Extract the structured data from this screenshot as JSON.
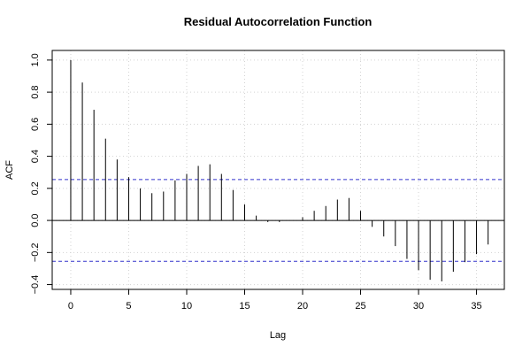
{
  "chart_data": {
    "type": "bar",
    "title": "Residual Autocorrelation Function",
    "xlabel": "Lag",
    "ylabel": "ACF",
    "x": [
      0,
      1,
      2,
      3,
      4,
      5,
      6,
      7,
      8,
      9,
      10,
      11,
      12,
      13,
      14,
      15,
      16,
      17,
      18,
      19,
      20,
      21,
      22,
      23,
      24,
      25,
      26,
      27,
      28,
      29,
      30,
      31,
      32,
      33,
      34,
      35,
      36
    ],
    "values": [
      1.0,
      0.86,
      0.69,
      0.51,
      0.38,
      0.27,
      0.2,
      0.17,
      0.18,
      0.25,
      0.29,
      0.34,
      0.35,
      0.29,
      0.19,
      0.1,
      0.03,
      -0.01,
      -0.01,
      0.0,
      0.02,
      0.06,
      0.09,
      0.13,
      0.14,
      0.06,
      -0.04,
      -0.1,
      -0.16,
      -0.24,
      -0.31,
      -0.37,
      -0.38,
      -0.32,
      -0.26,
      -0.21,
      -0.15
    ],
    "confidence_limit": 0.255,
    "xlim": [
      -1.6,
      37.4
    ],
    "ylim": [
      -0.43,
      1.06
    ],
    "x_ticks": [
      0,
      5,
      10,
      15,
      20,
      25,
      30,
      35
    ],
    "y_ticks": [
      -0.4,
      -0.2,
      0.0,
      0.2,
      0.4,
      0.6,
      0.8,
      1.0
    ],
    "x_tick_labels": [
      "0",
      "5",
      "10",
      "15",
      "20",
      "25",
      "30",
      "35"
    ],
    "y_tick_labels": [
      "−0.4",
      "−0.2",
      "0.0",
      "0.2",
      "0.4",
      "0.6",
      "0.8",
      "1.0"
    ],
    "grid": true,
    "colors": {
      "bars": "#000000",
      "confidence": "#3333cc",
      "grid": "#d3d3d3",
      "frame": "#000000"
    }
  }
}
